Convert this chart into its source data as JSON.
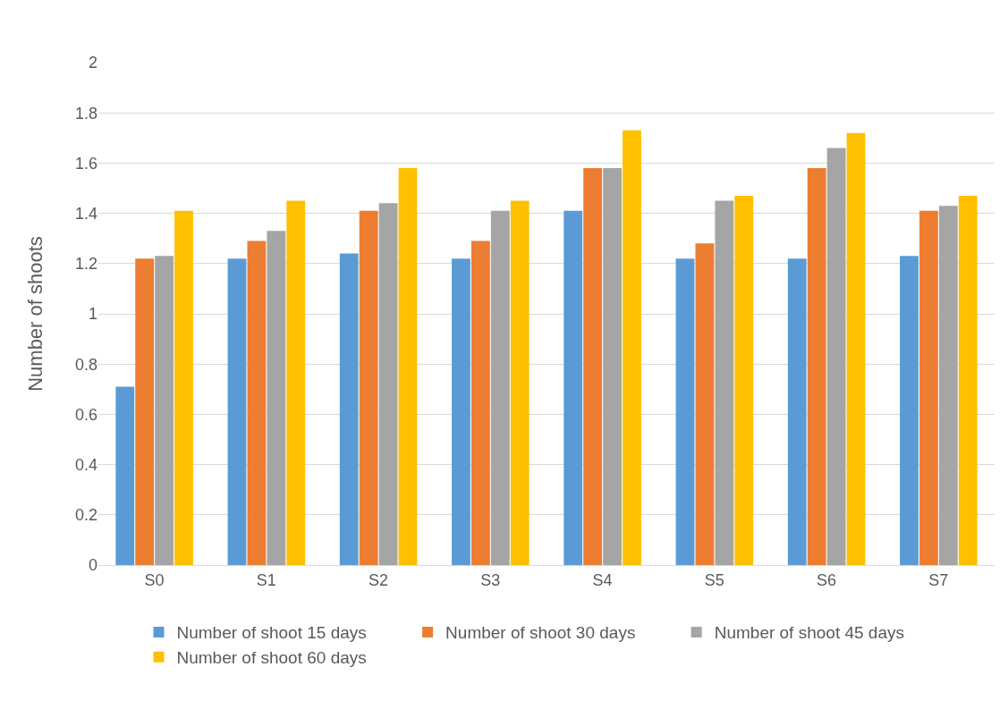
{
  "chart_data": {
    "type": "bar",
    "ylabel": "Number of shoots",
    "categories": [
      "S0",
      "S1",
      "S2",
      "S3",
      "S4",
      "S5",
      "S6",
      "S7"
    ],
    "series": [
      {
        "name": "Number of shoot 15 days",
        "color": "#5b9bd5",
        "values": [
          0.71,
          1.22,
          1.24,
          1.22,
          1.41,
          1.22,
          1.22,
          1.23
        ]
      },
      {
        "name": "Number of shoot 30 days",
        "color": "#ed7d31",
        "values": [
          1.22,
          1.29,
          1.41,
          1.29,
          1.58,
          1.28,
          1.58,
          1.41
        ]
      },
      {
        "name": "Number of shoot 45 days",
        "color": "#a5a5a5",
        "values": [
          1.23,
          1.33,
          1.44,
          1.41,
          1.58,
          1.45,
          1.66,
          1.43
        ]
      },
      {
        "name": "Number of shoot 60 days",
        "color": "#ffc000",
        "values": [
          1.41,
          1.45,
          1.58,
          1.45,
          1.73,
          1.47,
          1.72,
          1.47
        ]
      }
    ],
    "ylim": [
      0,
      2
    ],
    "yticks": [
      0,
      0.2,
      0.4,
      0.6,
      0.8,
      1,
      1.2,
      1.4,
      1.6,
      1.8,
      2
    ],
    "grid": "y",
    "legend": "bottom"
  }
}
